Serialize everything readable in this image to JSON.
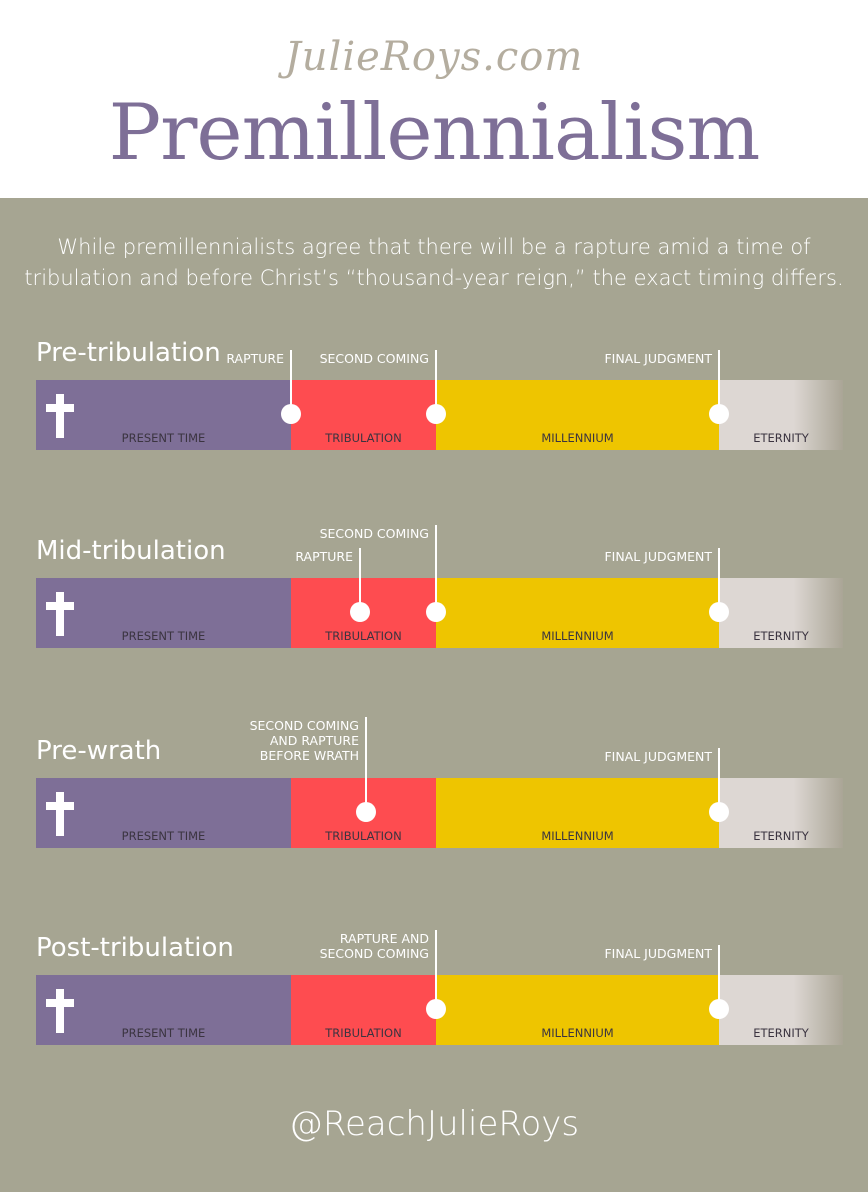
{
  "header": {
    "site": "JulieRoys.com",
    "title": "Premillennialism"
  },
  "intro": "While premillennialists agree that there will be a rapture amid a time of tribulation and before Christ’s “thousand-year reign,” the exact timing differs.",
  "segments": {
    "present": "PRESENT TIME",
    "tribulation": "TRIBULATION",
    "millennium": "MILLENNIUM",
    "eternity": "ETERNITY"
  },
  "colors": {
    "present": "#7e6f97",
    "tribulation": "#fe4c50",
    "millennium": "#eec500",
    "eternity": "#ddd7d3",
    "background": "#a6a592"
  },
  "rows": [
    {
      "name": "Pre-tribulation",
      "markers": [
        "RAPTURE",
        "SECOND COMING",
        "FINAL JUDGMENT"
      ]
    },
    {
      "name": "Mid-tribulation",
      "markers": [
        "RAPTURE",
        "SECOND COMING",
        "FINAL JUDGMENT"
      ]
    },
    {
      "name": "Pre-wrath",
      "markers": [
        "SECOND COMING\nAND RAPTURE\nBEFORE WRATH",
        "FINAL JUDGMENT"
      ]
    },
    {
      "name": "Post-tribulation",
      "markers": [
        "RAPTURE AND\nSECOND COMING",
        "FINAL JUDGMENT"
      ]
    }
  ],
  "footer": "@ReachJulieRoys"
}
